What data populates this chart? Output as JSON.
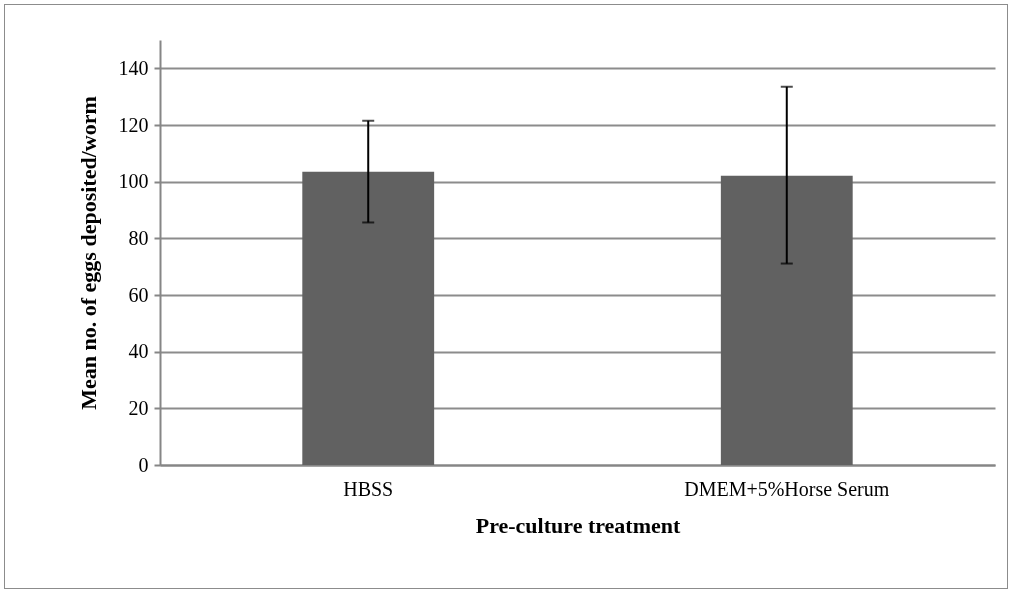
{
  "chart_data": {
    "type": "bar",
    "xlabel": "Pre-culture treatment",
    "ylabel": "Mean no. of eggs deposited/worm",
    "categories": [
      "HBSS",
      "DMEM+5%Horse Serum"
    ],
    "values": [
      103.5,
      102.1
    ],
    "errors": [
      [
        85.6,
        121.5
      ],
      [
        71.1,
        133.5
      ]
    ],
    "color": "#616161",
    "ylim": [
      0,
      150
    ],
    "yticks": [
      0,
      20,
      40,
      60,
      80,
      100,
      120,
      140
    ],
    "grid": "y"
  }
}
